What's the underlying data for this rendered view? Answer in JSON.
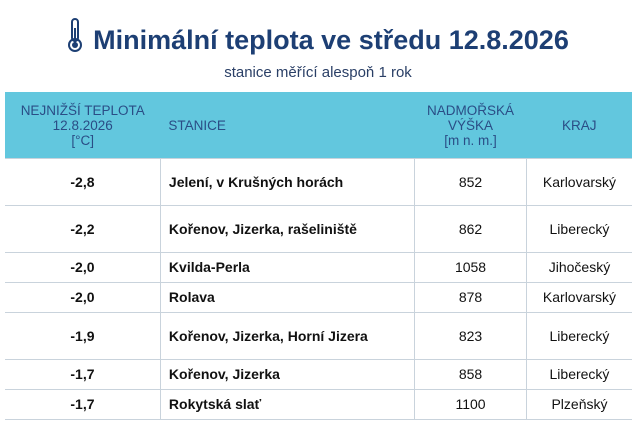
{
  "header": {
    "title": "Minimální teplota ve středu 12.8.2026",
    "subtitle": "stanice měřící alespoň 1 rok"
  },
  "table": {
    "columns": [
      [
        "NEJNIŽŠÍ TEPLOTA",
        "12.8.2026",
        "[°C]"
      ],
      [
        "STANICE"
      ],
      [
        "NADMOŘSKÁ",
        "VÝŠKA",
        "[m n. m.]"
      ],
      [
        "KRAJ"
      ]
    ],
    "rows": [
      [
        "-2,8",
        "Jelení, v Krušných horách",
        "852",
        "Karlovarský"
      ],
      [
        "-2,2",
        "Kořenov, Jizerka, rašeliniště",
        "862",
        "Liberecký"
      ],
      [
        "-2,0",
        "Kvilda-Perla",
        "1058",
        "Jihočeský"
      ],
      [
        "-2,0",
        "Rolava",
        "878",
        "Karlovarský"
      ],
      [
        "-1,9",
        "Kořenov, Jizerka, Horní Jizera",
        "823",
        "Liberecký"
      ],
      [
        "-1,7",
        "Kořenov, Jizerka",
        "858",
        "Liberecký"
      ],
      [
        "-1,7",
        "Rokytská slať",
        "1100",
        "Plzeňský"
      ]
    ]
  }
}
